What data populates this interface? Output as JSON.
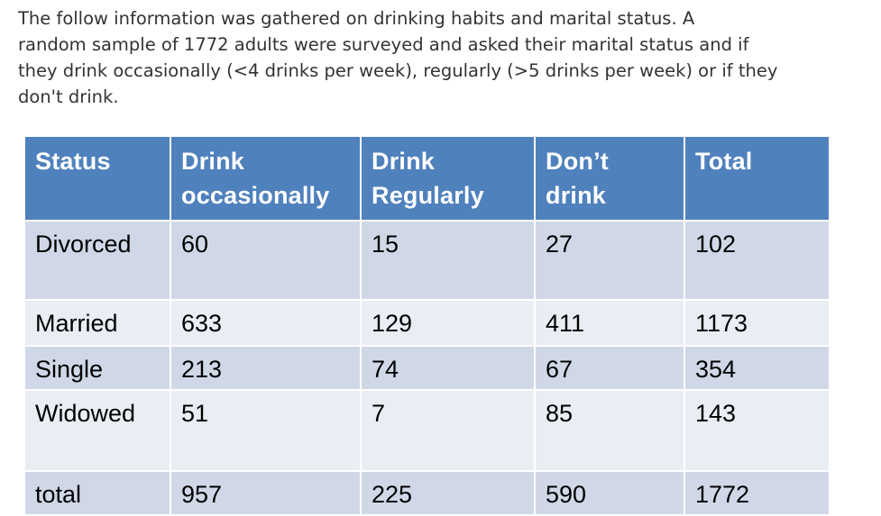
{
  "intro": {
    "lines": [
      "The follow information was gathered on drinking habits and marital status.  A",
      "random sample of 1772 adults were surveyed and asked their marital status and if",
      "they drink occasionally (<4 drinks per week), regularly (>5 drinks per week) or if they",
      "don't drink."
    ]
  },
  "table": {
    "headers": [
      [
        "Status"
      ],
      [
        "Drink",
        "occasionally"
      ],
      [
        "Drink",
        "Regularly"
      ],
      [
        "Don’t",
        "drink"
      ],
      [
        "Total"
      ]
    ],
    "rows": [
      [
        "Divorced",
        "60",
        "15",
        "27",
        "102"
      ],
      [
        "Married",
        "633",
        "129",
        "411",
        "1173"
      ],
      [
        "Single",
        "213",
        "74",
        "67",
        "354"
      ],
      [
        "Widowed",
        "51",
        "7",
        "85",
        "143"
      ],
      [
        "total",
        "957",
        "225",
        "590",
        "1772"
      ]
    ]
  },
  "colors": {
    "header_bg": "#4f81bd",
    "row_dark": "#d0d8e8",
    "row_light": "#e9edf4"
  }
}
